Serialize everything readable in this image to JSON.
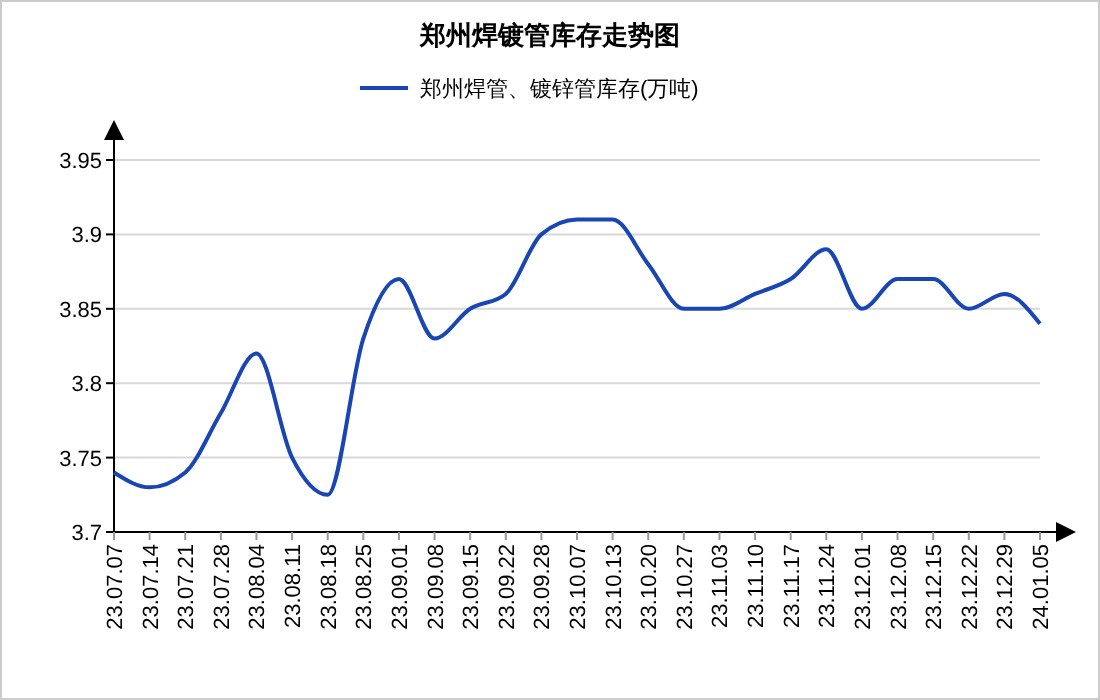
{
  "chart_data": {
    "type": "line",
    "title": "郑州焊镀管库存走势图",
    "categories": [
      "23.07.07",
      "23.07.14",
      "23.07.21",
      "23.07.28",
      "23.08.04",
      "23.08.11",
      "23.08.18",
      "23.08.25",
      "23.09.01",
      "23.09.08",
      "23.09.15",
      "23.09.22",
      "23.09.28",
      "23.10.07",
      "23.10.13",
      "23.10.20",
      "23.10.27",
      "23.11.03",
      "23.11.10",
      "23.11.17",
      "23.11.24",
      "23.12.01",
      "23.12.08",
      "23.12.15",
      "23.12.22",
      "23.12.29",
      "24.01.05"
    ],
    "series": [
      {
        "name": "郑州焊管、镀锌管库存(万吨)",
        "color": "#1a46b4",
        "values": [
          3.74,
          3.73,
          3.74,
          3.78,
          3.82,
          3.75,
          3.725,
          3.83,
          3.87,
          3.83,
          3.85,
          3.86,
          3.9,
          3.91,
          3.91,
          3.88,
          3.85,
          3.85,
          3.86,
          3.87,
          3.89,
          3.85,
          3.87,
          3.87,
          3.85,
          3.86,
          3.84
        ]
      }
    ],
    "ylim": [
      3.7,
      3.95
    ],
    "yticks": [
      3.7,
      3.75,
      3.8,
      3.85,
      3.9,
      3.95
    ],
    "grid": "y",
    "legend": "top",
    "marker": "none",
    "line_style": "solid"
  }
}
